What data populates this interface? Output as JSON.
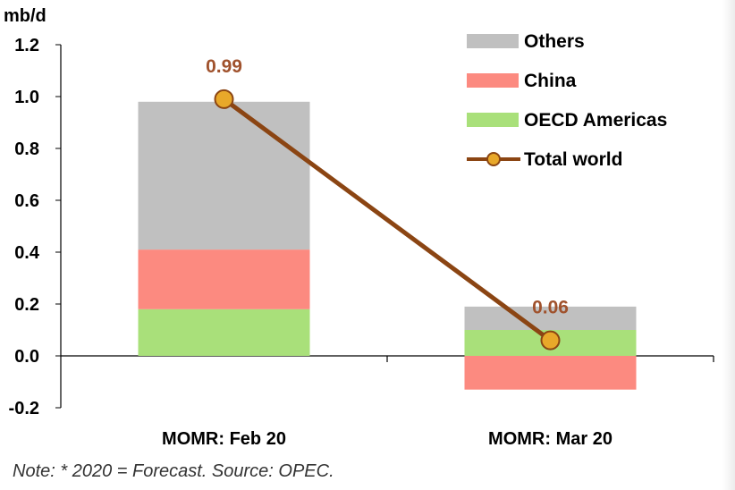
{
  "chart_data": {
    "type": "bar",
    "stacked": true,
    "unit_label": "mb/d",
    "categories": [
      "MOMR: Feb 20",
      "MOMR: Mar 20"
    ],
    "series": [
      {
        "name": "OECD Americas",
        "kind": "bar",
        "color": "#a9e07a",
        "values": [
          0.18,
          0.1
        ]
      },
      {
        "name": "China",
        "kind": "bar",
        "color": "#fc8a80",
        "values": [
          0.23,
          -0.13
        ]
      },
      {
        "name": "Others",
        "kind": "bar",
        "color": "#c0c0c0",
        "values": [
          0.57,
          0.09
        ]
      },
      {
        "name": "Total world",
        "kind": "line",
        "color": "#8b4513",
        "marker_color": "#e8a82a",
        "values": [
          0.99,
          0.06
        ]
      }
    ],
    "data_labels": [
      "0.99",
      "0.06"
    ],
    "ylim": [
      -0.2,
      1.2
    ],
    "yticks": [
      "-0.2",
      "0.0",
      "0.2",
      "0.4",
      "0.6",
      "0.8",
      "1.0",
      "1.2"
    ],
    "legend_order": [
      "Others",
      "China",
      "OECD Americas",
      "Total world"
    ],
    "legend_position": "top-right",
    "grid": false
  },
  "note": "Note: * 2020 = Forecast. Source: OPEC."
}
